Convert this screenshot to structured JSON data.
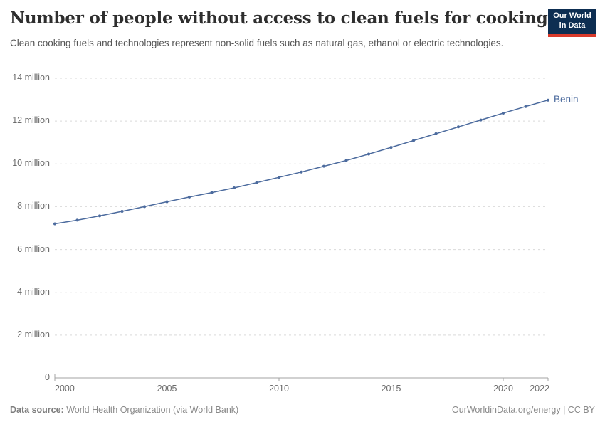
{
  "header": {
    "title": "Number of people without access to clean fuels for cooking",
    "subtitle": "Clean cooking fuels and technologies represent non-solid fuels such as natural gas, ethanol or electric technologies.",
    "logo": {
      "line1": "Our World",
      "line2": "in Data"
    }
  },
  "chart_data": {
    "type": "line",
    "title": "Number of people without access to clean fuels for cooking",
    "xlabel": "",
    "ylabel": "",
    "unit": "people (millions)",
    "xlim": [
      2000,
      2022
    ],
    "ylim_millions": [
      0,
      14
    ],
    "grid": "horizontal dashed gridlines on",
    "legend": "end-of-line label",
    "x_ticks": [
      2000,
      2005,
      2010,
      2015,
      2020,
      2022
    ],
    "y_ticks": [
      {
        "value": 0,
        "label": "0"
      },
      {
        "value": 2,
        "label": "2 million"
      },
      {
        "value": 4,
        "label": "4 million"
      },
      {
        "value": 6,
        "label": "6 million"
      },
      {
        "value": 8,
        "label": "8 million"
      },
      {
        "value": 10,
        "label": "10 million"
      },
      {
        "value": 12,
        "label": "12 million"
      },
      {
        "value": 14,
        "label": "14 million"
      }
    ],
    "x": [
      2000,
      2001,
      2002,
      2003,
      2004,
      2005,
      2006,
      2007,
      2008,
      2009,
      2010,
      2011,
      2012,
      2013,
      2014,
      2015,
      2016,
      2017,
      2018,
      2019,
      2020,
      2021,
      2022
    ],
    "series": [
      {
        "name": "Benin",
        "color": "#4c6b9e",
        "values_millions": [
          7.2,
          7.37,
          7.57,
          7.78,
          8.0,
          8.23,
          8.45,
          8.66,
          8.88,
          9.12,
          9.37,
          9.62,
          9.89,
          10.16,
          10.46,
          10.77,
          11.09,
          11.41,
          11.73,
          12.05,
          12.37,
          12.68,
          12.98
        ]
      }
    ]
  },
  "footer": {
    "source_label": "Data source:",
    "source_value": " World Health Organization (via World Bank)",
    "rights": "OurWorldinData.org/energy | CC BY"
  },
  "colors": {
    "series_blue": "#4c6b9e",
    "gridline": "#d9d9d9",
    "axis": "#a3a3a3",
    "tick_label": "#6b6b6b",
    "title_text": "#2e2e2e",
    "subtitle_text": "#555555",
    "footer_text": "#8a8a8a",
    "logo_navy": "#0d2e52",
    "logo_red": "#d93a2b"
  }
}
